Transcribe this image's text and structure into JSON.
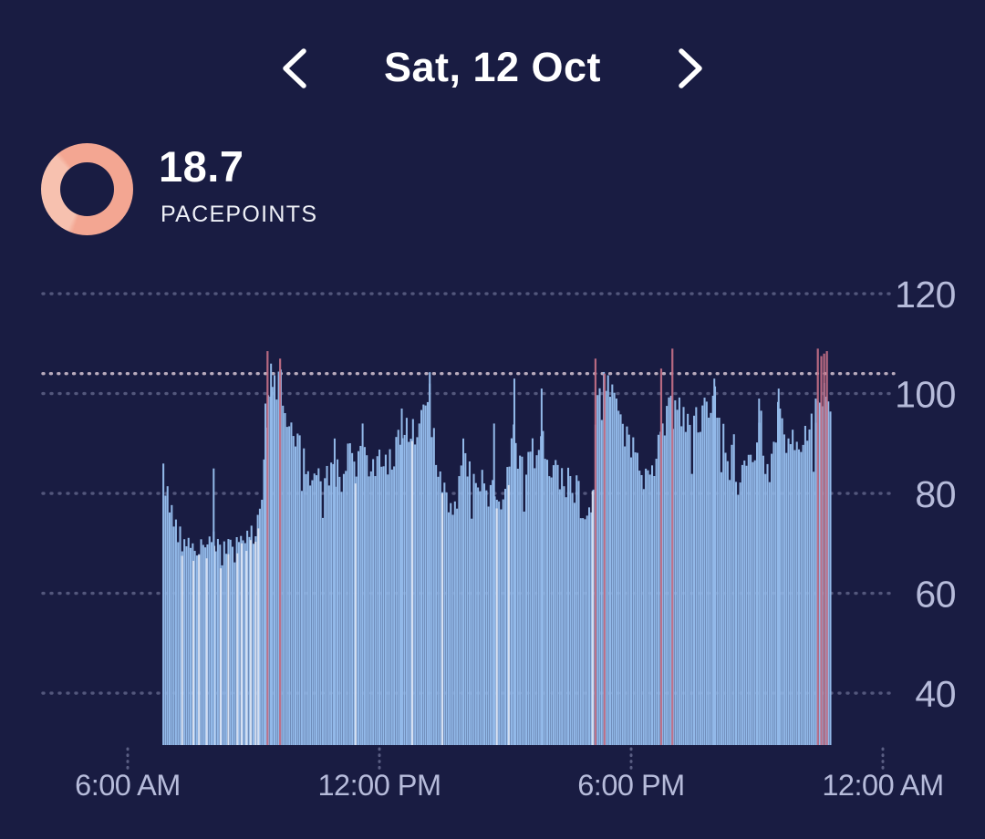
{
  "header": {
    "title": "Sat, 12 Oct"
  },
  "summary": {
    "value": "18.7",
    "label": "PACEPOINTS",
    "ring_color": "#f3a692",
    "ring_color_light": "#f7c1af"
  },
  "chart_data": {
    "type": "bar",
    "description": "Heart-rate style bars per minute for Sat 12 Oct, 06:51 to 22:46",
    "ylim": [
      29.6,
      122
    ],
    "y_ticks": [
      40,
      60,
      80,
      100,
      120
    ],
    "x_ticks": [
      {
        "label": "6:00 AM",
        "minute": 360
      },
      {
        "label": "12:00 PM",
        "minute": 720
      },
      {
        "label": "6:00 PM",
        "minute": 1080
      },
      {
        "label": "12:00 AM",
        "minute": 1440
      }
    ],
    "threshold_line": 104,
    "start_minute": 411,
    "end_minute": 1366,
    "noise_seed": 20241012,
    "noise_amp_sleep": 2.6,
    "noise_amp_active": 3.4,
    "envelope": [
      [
        411,
        85
      ],
      [
        415,
        80
      ],
      [
        421,
        78
      ],
      [
        427,
        75
      ],
      [
        433,
        72
      ],
      [
        439,
        69
      ],
      [
        445,
        70
      ],
      [
        451,
        69
      ],
      [
        457,
        68
      ],
      [
        463,
        70
      ],
      [
        469,
        71
      ],
      [
        475,
        68
      ],
      [
        481,
        73
      ],
      [
        487,
        70
      ],
      [
        493,
        67
      ],
      [
        499,
        69
      ],
      [
        505,
        70
      ],
      [
        511,
        67
      ],
      [
        517,
        70
      ],
      [
        523,
        72
      ],
      [
        529,
        70
      ],
      [
        535,
        73
      ],
      [
        541,
        71
      ],
      [
        547,
        75
      ],
      [
        553,
        80
      ],
      [
        557,
        92
      ],
      [
        560,
        103
      ],
      [
        563,
        97
      ],
      [
        567,
        99
      ],
      [
        571,
        101
      ],
      [
        575,
        103
      ],
      [
        579,
        104
      ],
      [
        582,
        100
      ],
      [
        586,
        97
      ],
      [
        590,
        94
      ],
      [
        596,
        92
      ],
      [
        602,
        90
      ],
      [
        608,
        88
      ],
      [
        614,
        86
      ],
      [
        620,
        84
      ],
      [
        626,
        82
      ],
      [
        632,
        83
      ],
      [
        638,
        81
      ],
      [
        644,
        82
      ],
      [
        650,
        85
      ],
      [
        656,
        89
      ],
      [
        662,
        84
      ],
      [
        668,
        87
      ],
      [
        674,
        88
      ],
      [
        680,
        86
      ],
      [
        686,
        84
      ],
      [
        692,
        87
      ],
      [
        698,
        89
      ],
      [
        704,
        85
      ],
      [
        710,
        84
      ],
      [
        716,
        85
      ],
      [
        722,
        86
      ],
      [
        728,
        85
      ],
      [
        734,
        86
      ],
      [
        740,
        87
      ],
      [
        746,
        89
      ],
      [
        752,
        94
      ],
      [
        758,
        92
      ],
      [
        764,
        93
      ],
      [
        770,
        92
      ],
      [
        776,
        94
      ],
      [
        782,
        95
      ],
      [
        788,
        99
      ],
      [
        792,
        101
      ],
      [
        796,
        92
      ],
      [
        800,
        88
      ],
      [
        804,
        85
      ],
      [
        810,
        82
      ],
      [
        816,
        79
      ],
      [
        822,
        77
      ],
      [
        828,
        78
      ],
      [
        834,
        81
      ],
      [
        840,
        86
      ],
      [
        846,
        84
      ],
      [
        852,
        84
      ],
      [
        858,
        83
      ],
      [
        864,
        83
      ],
      [
        870,
        81
      ],
      [
        876,
        80
      ],
      [
        882,
        81
      ],
      [
        888,
        79
      ],
      [
        894,
        80
      ],
      [
        900,
        82
      ],
      [
        906,
        84
      ],
      [
        912,
        97
      ],
      [
        918,
        86
      ],
      [
        924,
        86
      ],
      [
        930,
        87
      ],
      [
        936,
        87
      ],
      [
        942,
        85
      ],
      [
        948,
        88
      ],
      [
        954,
        92
      ],
      [
        960,
        85
      ],
      [
        966,
        84
      ],
      [
        972,
        85
      ],
      [
        978,
        84
      ],
      [
        984,
        83
      ],
      [
        990,
        82
      ],
      [
        996,
        82
      ],
      [
        1002,
        81
      ],
      [
        1008,
        78
      ],
      [
        1014,
        77
      ],
      [
        1020,
        75
      ],
      [
        1026,
        84
      ],
      [
        1030,
        95
      ],
      [
        1034,
        101
      ],
      [
        1038,
        102
      ],
      [
        1042,
        101
      ],
      [
        1046,
        103
      ],
      [
        1050,
        102
      ],
      [
        1054,
        100
      ],
      [
        1058,
        98
      ],
      [
        1064,
        95
      ],
      [
        1070,
        93
      ],
      [
        1076,
        91
      ],
      [
        1082,
        90
      ],
      [
        1088,
        87
      ],
      [
        1094,
        85
      ],
      [
        1100,
        84
      ],
      [
        1106,
        84
      ],
      [
        1112,
        86
      ],
      [
        1118,
        90
      ],
      [
        1124,
        93
      ],
      [
        1130,
        95
      ],
      [
        1136,
        97
      ],
      [
        1142,
        96
      ],
      [
        1148,
        95
      ],
      [
        1154,
        94
      ],
      [
        1160,
        94
      ],
      [
        1166,
        93
      ],
      [
        1172,
        95
      ],
      [
        1178,
        94
      ],
      [
        1184,
        96
      ],
      [
        1190,
        97
      ],
      [
        1196,
        99
      ],
      [
        1200,
        101
      ],
      [
        1204,
        97
      ],
      [
        1208,
        94
      ],
      [
        1214,
        91
      ],
      [
        1220,
        89
      ],
      [
        1226,
        87
      ],
      [
        1232,
        85
      ],
      [
        1238,
        84
      ],
      [
        1244,
        84
      ],
      [
        1250,
        85
      ],
      [
        1256,
        87
      ],
      [
        1260,
        93
      ],
      [
        1264,
        98
      ],
      [
        1268,
        91
      ],
      [
        1272,
        87
      ],
      [
        1276,
        85
      ],
      [
        1282,
        86
      ],
      [
        1286,
        89
      ],
      [
        1290,
        99
      ],
      [
        1294,
        94
      ],
      [
        1298,
        91
      ],
      [
        1304,
        89
      ],
      [
        1310,
        87
      ],
      [
        1316,
        88
      ],
      [
        1322,
        89
      ],
      [
        1328,
        91
      ],
      [
        1334,
        92
      ],
      [
        1340,
        94
      ],
      [
        1344,
        97
      ],
      [
        1348,
        100
      ],
      [
        1352,
        99
      ],
      [
        1356,
        100
      ],
      [
        1360,
        101
      ],
      [
        1363,
        99
      ],
      [
        1366,
        92
      ]
    ],
    "blue_spikes": [
      [
        483,
        85
      ],
      [
        557,
        98
      ],
      [
        565,
        106
      ],
      [
        656,
        91
      ],
      [
        696,
        94
      ],
      [
        752,
        97
      ],
      [
        792,
        102
      ],
      [
        840,
        91
      ],
      [
        884,
        94
      ],
      [
        913,
        103
      ],
      [
        952,
        101
      ],
      [
        1199,
        103
      ],
      [
        1263,
        99
      ],
      [
        1291,
        101
      ],
      [
        1344,
        99
      ]
    ],
    "red_spikes": [
      [
        560,
        108.5
      ],
      [
        578,
        107
      ],
      [
        1029,
        107
      ],
      [
        1042,
        104
      ],
      [
        1123,
        105
      ],
      [
        1139,
        109
      ],
      [
        1347,
        109
      ],
      [
        1352,
        107.5
      ],
      [
        1356,
        108
      ],
      [
        1360,
        108.5
      ]
    ],
    "gap_stripes": [
      438,
      454,
      462,
      473,
      484,
      493,
      504,
      517,
      523,
      530,
      536,
      543,
      547,
      686,
      767,
      810,
      888,
      905,
      1025
    ],
    "colors": {
      "background": "#191c42",
      "bar": "#92b9e9",
      "spike_red": "#c06e85",
      "gap": "#dfe6f4",
      "grid": "#9ba0c3",
      "threshold": "#d6c4d3",
      "axis_text": "#b6bbda"
    }
  }
}
